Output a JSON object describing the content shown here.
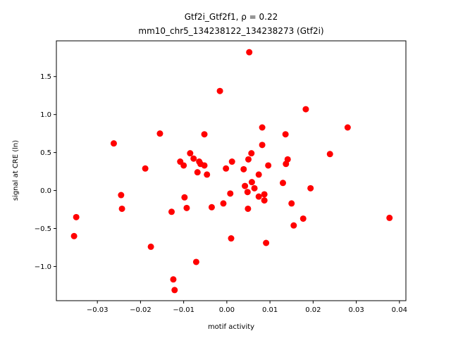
{
  "chart_data": {
    "type": "scatter",
    "title_line1": "Gtf2i_Gtf2f1, ρ = 0.22",
    "title_line2": "mm10_chr5_134238122_134238273 (Gtf2i)",
    "xlabel": "motif activity",
    "ylabel": "signal at CRE (ln)",
    "xlim": [
      -0.0395,
      0.0415
    ],
    "ylim": [
      -1.45,
      1.97
    ],
    "xticks": [
      -0.03,
      -0.02,
      -0.01,
      0.0,
      0.01,
      0.02,
      0.03,
      0.04
    ],
    "xtick_labels": [
      "−0.03",
      "−0.02",
      "−0.01",
      "0.00",
      "0.01",
      "0.02",
      "0.03",
      "0.04"
    ],
    "yticks": [
      -1.0,
      -0.5,
      0.0,
      0.5,
      1.0,
      1.5
    ],
    "ytick_labels": [
      "−1.0",
      "−0.5",
      "0.0",
      "0.5",
      "1.0",
      "1.5"
    ],
    "grid": false,
    "marker_color": "#ff0000",
    "points": [
      {
        "x": 0.0052,
        "y": 1.82
      },
      {
        "x": -0.0016,
        "y": 1.31
      },
      {
        "x": 0.0183,
        "y": 1.07
      },
      {
        "x": 0.028,
        "y": 0.83
      },
      {
        "x": 0.0082,
        "y": 0.83
      },
      {
        "x": -0.0155,
        "y": 0.75
      },
      {
        "x": -0.0052,
        "y": 0.74
      },
      {
        "x": 0.0136,
        "y": 0.74
      },
      {
        "x": -0.0262,
        "y": 0.62
      },
      {
        "x": 0.0082,
        "y": 0.6
      },
      {
        "x": -0.0085,
        "y": 0.49
      },
      {
        "x": 0.0057,
        "y": 0.49
      },
      {
        "x": 0.0239,
        "y": 0.48
      },
      {
        "x": -0.0077,
        "y": 0.42
      },
      {
        "x": 0.005,
        "y": 0.41
      },
      {
        "x": 0.0141,
        "y": 0.41
      },
      {
        "x": -0.0108,
        "y": 0.38
      },
      {
        "x": -0.0064,
        "y": 0.38
      },
      {
        "x": 0.0012,
        "y": 0.38
      },
      {
        "x": -0.0061,
        "y": 0.35
      },
      {
        "x": 0.0137,
        "y": 0.35
      },
      {
        "x": -0.01,
        "y": 0.33
      },
      {
        "x": -0.0052,
        "y": 0.33
      },
      {
        "x": 0.0096,
        "y": 0.33
      },
      {
        "x": -0.0189,
        "y": 0.29
      },
      {
        "x": -0.0002,
        "y": 0.29
      },
      {
        "x": 0.0039,
        "y": 0.28
      },
      {
        "x": -0.0068,
        "y": 0.24
      },
      {
        "x": -0.0046,
        "y": 0.21
      },
      {
        "x": 0.0074,
        "y": 0.21
      },
      {
        "x": 0.0058,
        "y": 0.11
      },
      {
        "x": 0.013,
        "y": 0.1
      },
      {
        "x": 0.0042,
        "y": 0.06
      },
      {
        "x": 0.0064,
        "y": 0.03
      },
      {
        "x": 0.0194,
        "y": 0.03
      },
      {
        "x": 0.0048,
        "y": -0.02
      },
      {
        "x": 0.0008,
        "y": -0.04
      },
      {
        "x": 0.0087,
        "y": -0.05
      },
      {
        "x": -0.0245,
        "y": -0.06
      },
      {
        "x": 0.0074,
        "y": -0.08
      },
      {
        "x": -0.0098,
        "y": -0.09
      },
      {
        "x": 0.0087,
        "y": -0.13
      },
      {
        "x": -0.0008,
        "y": -0.17
      },
      {
        "x": 0.015,
        "y": -0.17
      },
      {
        "x": -0.0035,
        "y": -0.22
      },
      {
        "x": -0.0093,
        "y": -0.23
      },
      {
        "x": 0.0049,
        "y": -0.24
      },
      {
        "x": -0.0243,
        "y": -0.24
      },
      {
        "x": -0.0128,
        "y": -0.28
      },
      {
        "x": -0.0349,
        "y": -0.35
      },
      {
        "x": 0.0377,
        "y": -0.36
      },
      {
        "x": 0.0177,
        "y": -0.37
      },
      {
        "x": 0.0155,
        "y": -0.46
      },
      {
        "x": -0.0354,
        "y": -0.6
      },
      {
        "x": 0.001,
        "y": -0.63
      },
      {
        "x": 0.0091,
        "y": -0.69
      },
      {
        "x": -0.0176,
        "y": -0.74
      },
      {
        "x": -0.0071,
        "y": -0.94
      },
      {
        "x": -0.0124,
        "y": -1.17
      },
      {
        "x": -0.0121,
        "y": -1.31
      }
    ]
  }
}
